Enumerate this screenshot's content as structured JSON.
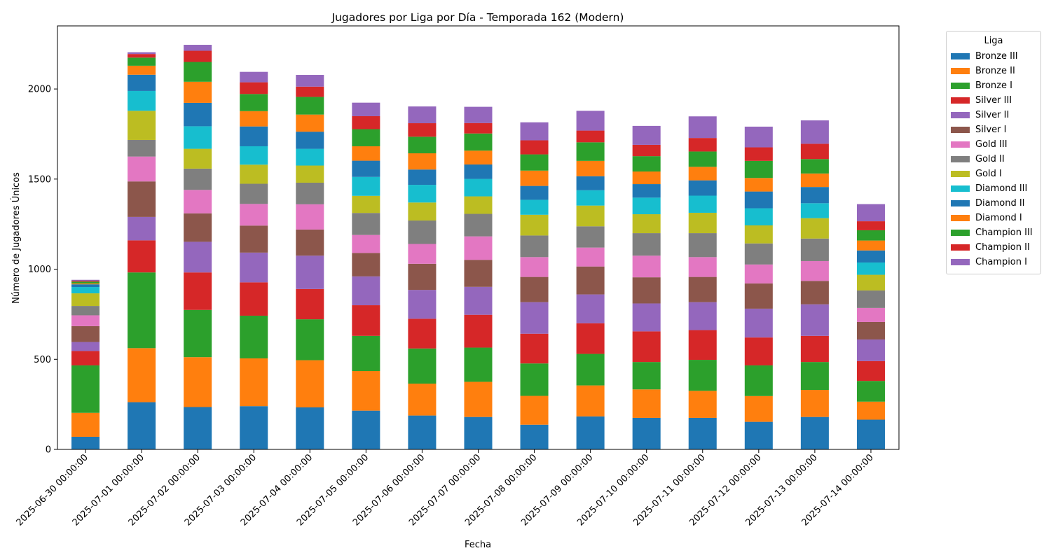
{
  "chart_data": {
    "type": "bar",
    "stacked": true,
    "title": "Jugadores por Liga por Día - Temporada 162 (Modern)",
    "xlabel": "Fecha",
    "ylabel": "Número de Jugadores Únicos",
    "ylim": [
      0,
      2350
    ],
    "yticks": [
      0,
      500,
      1000,
      1500,
      2000
    ],
    "legend_title": "Liga",
    "legend_position": "outside-right",
    "categories": [
      "2025-06-30 00:00:00",
      "2025-07-01 00:00:00",
      "2025-07-02 00:00:00",
      "2025-07-03 00:00:00",
      "2025-07-04 00:00:00",
      "2025-07-05 00:00:00",
      "2025-07-06 00:00:00",
      "2025-07-07 00:00:00",
      "2025-07-08 00:00:00",
      "2025-07-09 00:00:00",
      "2025-07-10 00:00:00",
      "2025-07-11 00:00:00",
      "2025-07-12 00:00:00",
      "2025-07-13 00:00:00",
      "2025-07-14 00:00:00"
    ],
    "series": [
      {
        "name": "Bronze III",
        "color": "#1f77b4",
        "values": [
          70,
          262,
          235,
          240,
          233,
          215,
          188,
          180,
          137,
          183,
          175,
          175,
          153,
          180,
          165
        ]
      },
      {
        "name": "Bronze II",
        "color": "#ff7f0e",
        "values": [
          133,
          300,
          277,
          265,
          262,
          220,
          177,
          195,
          160,
          172,
          158,
          150,
          143,
          150,
          100
        ]
      },
      {
        "name": "Bronze I",
        "color": "#2ca02c",
        "values": [
          263,
          420,
          262,
          237,
          227,
          195,
          195,
          190,
          180,
          175,
          152,
          172,
          170,
          155,
          115
        ]
      },
      {
        "name": "Silver III",
        "color": "#d62728",
        "values": [
          80,
          178,
          208,
          185,
          168,
          170,
          165,
          182,
          165,
          170,
          170,
          165,
          155,
          145,
          110
        ]
      },
      {
        "name": "Silver II",
        "color": "#9467bd",
        "values": [
          50,
          130,
          170,
          165,
          185,
          160,
          160,
          155,
          175,
          160,
          155,
          155,
          160,
          175,
          120
        ]
      },
      {
        "name": "Silver I",
        "color": "#8c564b",
        "values": [
          88,
          197,
          158,
          150,
          145,
          130,
          145,
          150,
          140,
          155,
          145,
          140,
          140,
          130,
          97
        ]
      },
      {
        "name": "Gold III",
        "color": "#e377c2",
        "values": [
          60,
          138,
          130,
          120,
          140,
          100,
          110,
          130,
          110,
          105,
          120,
          110,
          105,
          110,
          78
        ]
      },
      {
        "name": "Gold II",
        "color": "#7f7f7f",
        "values": [
          52,
          92,
          118,
          112,
          120,
          122,
          130,
          125,
          120,
          118,
          125,
          133,
          117,
          125,
          97
        ]
      },
      {
        "name": "Gold I",
        "color": "#bcbd22",
        "values": [
          70,
          162,
          110,
          106,
          95,
          95,
          100,
          97,
          115,
          115,
          105,
          113,
          100,
          113,
          87
        ]
      },
      {
        "name": "Diamond III",
        "color": "#17becf",
        "values": [
          35,
          110,
          125,
          102,
          93,
          105,
          98,
          97,
          83,
          85,
          92,
          95,
          95,
          83,
          68
        ]
      },
      {
        "name": "Diamond II",
        "color": "#1f77b4",
        "values": [
          15,
          90,
          130,
          110,
          95,
          90,
          85,
          80,
          77,
          78,
          75,
          85,
          93,
          90,
          67
        ]
      },
      {
        "name": "Diamond I",
        "color": "#ff7f0e",
        "values": [
          5,
          50,
          117,
          85,
          95,
          80,
          90,
          77,
          85,
          85,
          70,
          75,
          75,
          75,
          55
        ]
      },
      {
        "name": "Champion III",
        "color": "#2ca02c",
        "values": [
          10,
          45,
          110,
          95,
          98,
          95,
          92,
          95,
          90,
          103,
          85,
          85,
          95,
          80,
          57
        ]
      },
      {
        "name": "Champion II",
        "color": "#d62728",
        "values": [
          5,
          20,
          62,
          65,
          57,
          72,
          75,
          58,
          78,
          65,
          63,
          75,
          75,
          85,
          50
        ]
      },
      {
        "name": "Champion I",
        "color": "#9467bd",
        "values": [
          5,
          10,
          33,
          58,
          65,
          75,
          93,
          90,
          100,
          110,
          105,
          120,
          115,
          130,
          95
        ]
      }
    ]
  }
}
